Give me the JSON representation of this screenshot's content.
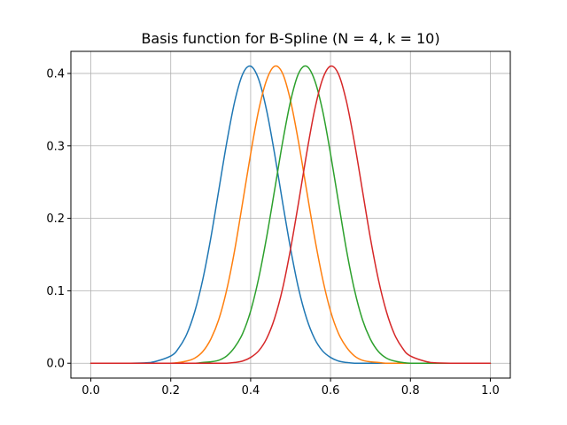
{
  "chart_data": {
    "type": "line",
    "title": "Basis function for B-Spline (N = 4, k = 10)",
    "xlabel": "",
    "ylabel": "",
    "xlim": [
      -0.05,
      1.05
    ],
    "ylim": [
      -0.0205,
      0.4305
    ],
    "xticks": [
      {
        "value": 0.0,
        "label": "0.0"
      },
      {
        "value": 0.2,
        "label": "0.2"
      },
      {
        "value": 0.4,
        "label": "0.4"
      },
      {
        "value": 0.6,
        "label": "0.6"
      },
      {
        "value": 0.8,
        "label": "0.8"
      },
      {
        "value": 1.0,
        "label": "1.0"
      }
    ],
    "yticks": [
      {
        "value": 0.0,
        "label": "0.0"
      },
      {
        "value": 0.1,
        "label": "0.1"
      },
      {
        "value": 0.2,
        "label": "0.2"
      },
      {
        "value": 0.3,
        "label": "0.3"
      },
      {
        "value": 0.4,
        "label": "0.4"
      }
    ],
    "grid": true,
    "legend": "none",
    "x": [
      0.0,
      0.05,
      0.1,
      0.15,
      0.2,
      0.22,
      0.24,
      0.26,
      0.28,
      0.3,
      0.32,
      0.34,
      0.36,
      0.38,
      0.4,
      0.42,
      0.44,
      0.46,
      0.48,
      0.5,
      0.52,
      0.54,
      0.56,
      0.58,
      0.6,
      0.62,
      0.64,
      0.66,
      0.68,
      0.7,
      0.72,
      0.74,
      0.76,
      0.78,
      0.8,
      0.85,
      0.9,
      0.95,
      1.0
    ],
    "series": [
      {
        "color": "#1f77b4",
        "values": [
          0.0,
          0.0,
          0.0,
          0.001,
          0.01,
          0.021,
          0.04,
          0.071,
          0.115,
          0.172,
          0.238,
          0.304,
          0.361,
          0.399,
          0.41,
          0.392,
          0.349,
          0.289,
          0.222,
          0.158,
          0.103,
          0.062,
          0.034,
          0.017,
          0.008,
          0.003,
          0.001,
          0.0,
          0.0,
          0.0,
          0.0,
          0.0,
          0.0,
          0.0,
          0.0,
          0.0,
          0.0,
          0.0,
          0.0
        ]
      },
      {
        "color": "#ff7f0e",
        "values": [
          0.0,
          0.0,
          0.0,
          0.0,
          0.0,
          0.001,
          0.003,
          0.007,
          0.016,
          0.033,
          0.06,
          0.101,
          0.156,
          0.222,
          0.289,
          0.349,
          0.391,
          0.41,
          0.4,
          0.362,
          0.305,
          0.239,
          0.174,
          0.117,
          0.072,
          0.041,
          0.022,
          0.01,
          0.004,
          0.002,
          0.001,
          0.0,
          0.0,
          0.0,
          0.0,
          0.0,
          0.0,
          0.0,
          0.0
        ]
      },
      {
        "color": "#2ca02c",
        "values": [
          0.0,
          0.0,
          0.0,
          0.0,
          0.0,
          0.0,
          0.0,
          0.0,
          0.001,
          0.002,
          0.004,
          0.01,
          0.022,
          0.041,
          0.072,
          0.117,
          0.174,
          0.239,
          0.305,
          0.362,
          0.4,
          0.41,
          0.391,
          0.349,
          0.289,
          0.222,
          0.156,
          0.101,
          0.06,
          0.033,
          0.016,
          0.007,
          0.003,
          0.001,
          0.0,
          0.0,
          0.0,
          0.0,
          0.0
        ]
      },
      {
        "color": "#d62728",
        "values": [
          0.0,
          0.0,
          0.0,
          0.0,
          0.0,
          0.0,
          0.0,
          0.0,
          0.0,
          0.0,
          0.0,
          0.0,
          0.001,
          0.003,
          0.008,
          0.017,
          0.034,
          0.062,
          0.103,
          0.158,
          0.222,
          0.289,
          0.349,
          0.392,
          0.41,
          0.399,
          0.361,
          0.304,
          0.238,
          0.172,
          0.115,
          0.071,
          0.04,
          0.021,
          0.01,
          0.001,
          0.0,
          0.0,
          0.0
        ]
      }
    ]
  }
}
